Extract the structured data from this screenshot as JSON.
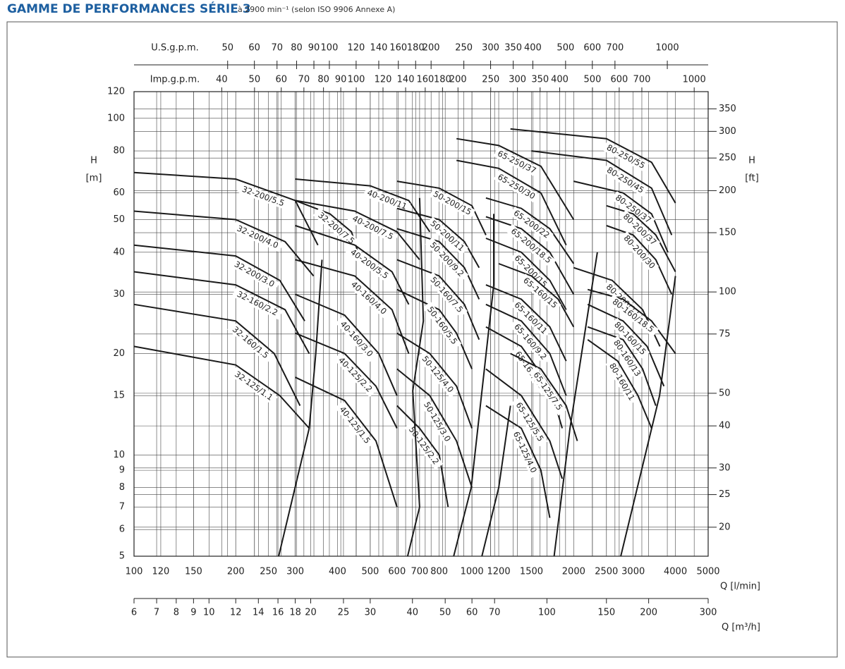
{
  "chart_data": {
    "type": "line",
    "title": "GAMME DE PERFORMANCES SÉRIE 3",
    "subtitle": "à 2900 min⁻¹ (selon ISO 9906 Annexe A)",
    "xlabel": "Q [l/min]",
    "x2label": "Q [m³/h]",
    "top_label_us": "U.S.g.p.m.",
    "top_label_imp": "Imp.g.p.m.",
    "ylabel": "H",
    "ylabel_unit": "[m]",
    "y2label": "H",
    "y2label_unit": "[ft]",
    "log_x": true,
    "log_y": true,
    "grid": true,
    "line_color": "#1a1a1a",
    "xlim": [
      100,
      5000
    ],
    "xticks": [
      100,
      120,
      150,
      200,
      250,
      300,
      400,
      500,
      600,
      700,
      800,
      1000,
      1200,
      1500,
      2000,
      2500,
      3000,
      4000,
      5000
    ],
    "x_m3h_lim": [
      6,
      300
    ],
    "x_m3h_ticks": [
      6,
      7,
      8,
      9,
      10,
      12,
      14,
      16,
      18,
      20,
      25,
      30,
      40,
      50,
      60,
      70,
      100,
      150,
      200,
      300
    ],
    "x_us_lim": [
      26.42,
      1321
    ],
    "x_us_ticks": [
      50,
      60,
      70,
      80,
      90,
      100,
      120,
      140,
      160,
      180,
      200,
      250,
      300,
      350,
      400,
      500,
      600,
      700,
      1000
    ],
    "x_imp_lim": [
      22.0,
      1099.9
    ],
    "x_imp_ticks": [
      40,
      50,
      60,
      70,
      80,
      90,
      100,
      120,
      140,
      160,
      180,
      200,
      250,
      300,
      350,
      400,
      500,
      600,
      700,
      1000
    ],
    "ylim": [
      5,
      120
    ],
    "yticks": [
      5,
      6,
      7,
      8,
      9,
      10,
      15,
      20,
      30,
      40,
      50,
      60,
      80,
      100,
      120
    ],
    "y2lim": [
      16.4,
      393.7
    ],
    "y2ticks": [
      20,
      25,
      30,
      40,
      50,
      75,
      100,
      150,
      200,
      250,
      300,
      350
    ],
    "series": [
      {
        "name": "32-200/5.5",
        "x": [
          100,
          200,
          300,
          350
        ],
        "values": [
          69,
          66,
          57,
          42
        ]
      },
      {
        "name": "32-200/4.0",
        "x": [
          100,
          200,
          280,
          340
        ],
        "values": [
          53,
          50,
          43,
          34
        ]
      },
      {
        "name": "32-200/3.0",
        "x": [
          100,
          200,
          270,
          320
        ],
        "values": [
          42,
          39,
          33,
          25
        ]
      },
      {
        "name": "32-160/2.2",
        "x": [
          100,
          200,
          280,
          330
        ],
        "values": [
          35,
          32,
          27,
          20
        ]
      },
      {
        "name": "32-160/1.5",
        "x": [
          100,
          200,
          260,
          310
        ],
        "values": [
          28,
          25,
          20,
          14
        ]
      },
      {
        "name": "32-125/1.1",
        "x": [
          100,
          200,
          270,
          330
        ],
        "values": [
          21,
          18.5,
          15,
          12
        ]
      },
      {
        "name": "32-200/7.5",
        "x": [
          300,
          380,
          440,
          460
        ],
        "values": [
          57,
          52,
          46,
          40
        ]
      },
      {
        "name": "40-200/11",
        "x": [
          300,
          500,
          650,
          750
        ],
        "values": [
          66,
          63,
          57,
          46
        ]
      },
      {
        "name": "40-200/7.5",
        "x": [
          300,
          450,
          600,
          700
        ],
        "values": [
          57,
          53,
          46,
          38
        ]
      },
      {
        "name": "40-200/5.5",
        "x": [
          300,
          450,
          580,
          650
        ],
        "values": [
          48,
          42,
          35,
          28
        ]
      },
      {
        "name": "40-160/4.0",
        "x": [
          300,
          450,
          580,
          650
        ],
        "values": [
          38,
          34,
          27,
          20
        ]
      },
      {
        "name": "40-160/3.0",
        "x": [
          300,
          420,
          530,
          600
        ],
        "values": [
          30,
          26,
          20,
          15
        ]
      },
      {
        "name": "40-125/2.2",
        "x": [
          300,
          420,
          520,
          600
        ],
        "values": [
          23,
          20,
          16,
          12
        ]
      },
      {
        "name": "40-125/1.5",
        "x": [
          300,
          420,
          520,
          600
        ],
        "values": [
          17,
          14.5,
          11,
          7
        ]
      },
      {
        "name": "50-200/15",
        "x": [
          600,
          800,
          1000,
          1100
        ],
        "values": [
          65,
          62,
          55,
          45
        ]
      },
      {
        "name": "50-200/11",
        "x": [
          600,
          800,
          950,
          1050
        ],
        "values": [
          54,
          50,
          43,
          36
        ]
      },
      {
        "name": "50-200/9.2",
        "x": [
          600,
          800,
          950,
          1050
        ],
        "values": [
          47,
          43,
          36,
          29
        ]
      },
      {
        "name": "50-160/7.5",
        "x": [
          600,
          800,
          950,
          1050
        ],
        "values": [
          38,
          34,
          28,
          22
        ]
      },
      {
        "name": "50-160/5.5",
        "x": [
          600,
          800,
          900,
          1000
        ],
        "values": [
          31,
          27,
          23,
          18
        ]
      },
      {
        "name": "50-125/4.0",
        "x": [
          600,
          750,
          900,
          1000
        ],
        "values": [
          23,
          20,
          16,
          12
        ]
      },
      {
        "name": "50-125/3.0",
        "x": [
          600,
          750,
          900,
          1000
        ],
        "values": [
          18,
          15,
          11,
          8
        ]
      },
      {
        "name": "50-125/2.2",
        "x": [
          600,
          700,
          800,
          850
        ],
        "values": [
          14,
          12,
          10,
          7
        ]
      },
      {
        "name": "65-250/37",
        "x": [
          900,
          1200,
          1600,
          2000
        ],
        "values": [
          87,
          83,
          72,
          50
        ]
      },
      {
        "name": "65-250/30",
        "x": [
          900,
          1200,
          1600,
          1900
        ],
        "values": [
          75,
          71,
          60,
          42
        ]
      },
      {
        "name": "65-200/22",
        "x": [
          1100,
          1400,
          1700,
          2000
        ],
        "values": [
          58,
          54,
          47,
          37
        ]
      },
      {
        "name": "65-200/18.5",
        "x": [
          1100,
          1400,
          1700,
          2000
        ],
        "values": [
          51,
          47,
          40,
          30
        ]
      },
      {
        "name": "65-200/15",
        "x": [
          1100,
          1400,
          1700,
          1900
        ],
        "values": [
          44,
          40,
          33,
          27
        ]
      },
      {
        "name": "65-160/15",
        "x": [
          1200,
          1500,
          1800,
          2000
        ],
        "values": [
          37,
          34,
          29,
          24
        ]
      },
      {
        "name": "65-160/11",
        "x": [
          1100,
          1400,
          1700,
          1900
        ],
        "values": [
          32,
          29,
          24,
          19
        ]
      },
      {
        "name": "65-160/9.2",
        "x": [
          1100,
          1400,
          1700,
          1900
        ],
        "values": [
          28,
          25,
          20,
          15
        ]
      },
      {
        "name": "65-160/7.5",
        "x": [
          1100,
          1400,
          1700,
          1850
        ],
        "values": [
          24,
          21,
          16,
          12
        ]
      },
      {
        "name": "65-125/7.5",
        "x": [
          1300,
          1600,
          1900,
          2050
        ],
        "values": [
          20,
          18,
          14,
          11
        ]
      },
      {
        "name": "65-125/5.5",
        "x": [
          1100,
          1400,
          1700,
          1850
        ],
        "values": [
          18,
          15,
          11,
          8.5
        ]
      },
      {
        "name": "65-125/4.0",
        "x": [
          1100,
          1400,
          1600,
          1700
        ],
        "values": [
          14,
          12,
          9,
          6.5
        ]
      },
      {
        "name": "80-250/55",
        "x": [
          1300,
          2500,
          3400,
          4000
        ],
        "values": [
          93,
          87,
          74,
          56
        ]
      },
      {
        "name": "80-250/45",
        "x": [
          1500,
          2500,
          3400,
          3900
        ],
        "values": [
          80,
          75,
          62,
          45
        ]
      },
      {
        "name": "80-250/37",
        "x": [
          2000,
          2800,
          3400,
          3800
        ],
        "values": [
          65,
          60,
          52,
          40
        ]
      },
      {
        "name": "80-200/37",
        "x": [
          2500,
          3000,
          3500,
          4000
        ],
        "values": [
          55,
          52,
          45,
          35
        ]
      },
      {
        "name": "80-200/30",
        "x": [
          2500,
          3000,
          3500,
          3900
        ],
        "values": [
          48,
          45,
          38,
          30
        ]
      },
      {
        "name": "80-200/22",
        "x": [
          2000,
          2600,
          3200,
          3600
        ],
        "values": [
          36,
          33,
          27,
          21
        ]
      },
      {
        "name": "80-160/18.5",
        "x": [
          2200,
          2800,
          3400,
          4000
        ],
        "values": [
          31,
          29,
          25,
          20
        ]
      },
      {
        "name": "80-160/15",
        "x": [
          2200,
          2800,
          3300,
          3700
        ],
        "values": [
          28,
          25,
          21,
          16
        ]
      },
      {
        "name": "80-160/13",
        "x": [
          2200,
          2800,
          3200,
          3500
        ],
        "values": [
          24,
          22,
          18,
          14
        ]
      },
      {
        "name": "80-160/11",
        "x": [
          2200,
          2700,
          3100,
          3400
        ],
        "values": [
          22,
          19,
          15,
          12
        ]
      },
      {
        "x": [
          268,
          330,
          345,
          360
        ],
        "values": [
          5,
          12,
          20,
          38
        ]
      },
      {
        "x": [
          645,
          700,
          668,
          718,
          700
        ],
        "values": [
          5,
          7,
          15.5,
          25,
          58
        ]
      },
      {
        "x": [
          883,
          995,
          1160,
          1160
        ],
        "values": [
          5,
          8,
          32,
          52
        ]
      },
      {
        "x": [
          1070,
          1200,
          1300
        ],
        "values": [
          5,
          8,
          14
        ]
      },
      {
        "x": [
          1750,
          1950,
          2350
        ],
        "values": [
          5,
          12,
          40
        ]
      },
      {
        "x": [
          2757,
          3590,
          4000
        ],
        "values": [
          5,
          15,
          34
        ]
      }
    ]
  }
}
